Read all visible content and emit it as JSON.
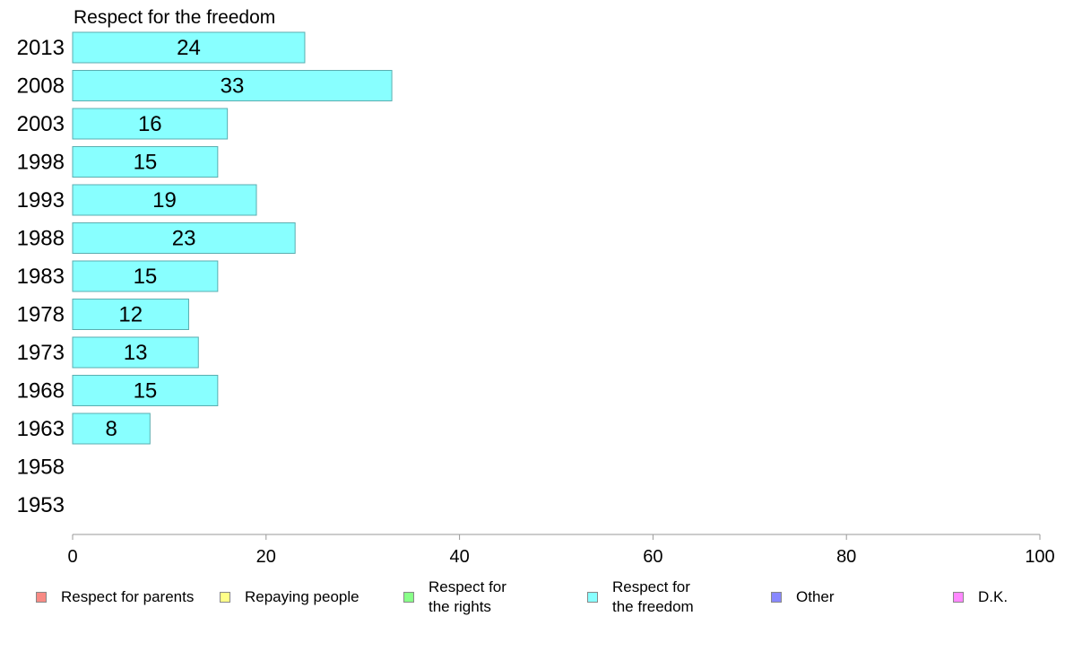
{
  "chart_data": {
    "type": "bar",
    "orientation": "horizontal",
    "title": "Respect for the freedom",
    "categories": [
      "2013",
      "2008",
      "2003",
      "1998",
      "1993",
      "1988",
      "1983",
      "1978",
      "1973",
      "1968",
      "1963",
      "1958",
      "1953"
    ],
    "values": [
      24,
      33,
      16,
      15,
      19,
      23,
      15,
      12,
      13,
      15,
      8,
      null,
      null
    ],
    "bar_color": "#88ffff",
    "bar_edge_color": "#5aaeb0",
    "xlim": [
      0,
      100
    ],
    "xticks": [
      "0",
      "20",
      "40",
      "60",
      "80",
      "100"
    ],
    "xticks_values": [
      0,
      20,
      40,
      60,
      80,
      100
    ],
    "grid": false,
    "legend_position": "bottom",
    "legend": [
      {
        "label": "Respect for parents",
        "color": "#f88a84"
      },
      {
        "label": "Repaying people",
        "color": "#ffff88"
      },
      {
        "label": "Respect for\nthe rights",
        "color": "#88ff88"
      },
      {
        "label": "Respect for\nthe freedom",
        "color": "#88ffff"
      },
      {
        "label": "Other",
        "color": "#8888ff"
      },
      {
        "label": "D.K.",
        "color": "#ff88ff"
      }
    ]
  }
}
